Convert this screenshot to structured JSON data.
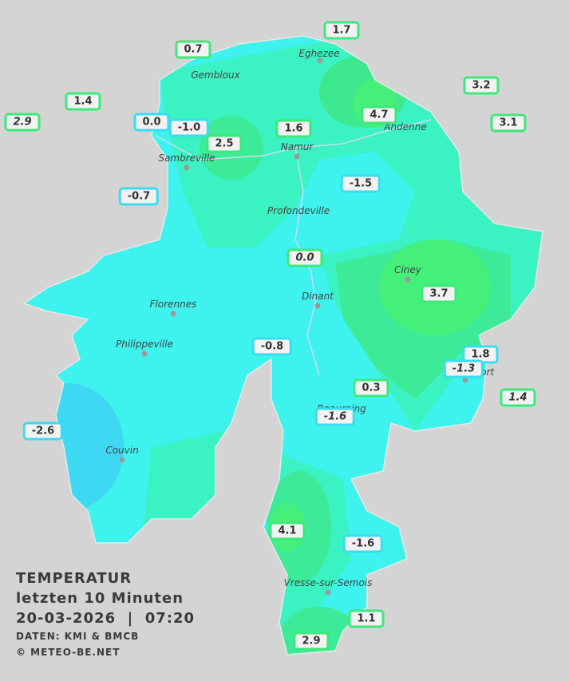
{
  "legend": {
    "title": "TEMPERATUR",
    "period": "letzten 10 Minuten",
    "datetime": "20-03-2026  |  07:20",
    "source": "DATEN: KMI & BMCB",
    "copyright": "© METEO-BE.NET"
  },
  "towns": [
    "Eghezee",
    "Gembloux",
    "Andenne",
    "Sambreville",
    "Namur",
    "Profondeville",
    "Ciney",
    "Dinant",
    "Florennes",
    "Philippeville",
    "Beauraing",
    "Rochefort",
    "Couvin",
    "Vresse-sur-Semois"
  ],
  "stations": [
    {
      "label": "0.7"
    },
    {
      "label": "1.7"
    },
    {
      "label": "1.4"
    },
    {
      "label": "2.9",
      "italic": true
    },
    {
      "label": "0.0"
    },
    {
      "label": "-1.0"
    },
    {
      "label": "2.5"
    },
    {
      "label": "1.6"
    },
    {
      "label": "4.7"
    },
    {
      "label": "3.2"
    },
    {
      "label": "3.1"
    },
    {
      "label": "-0.7"
    },
    {
      "label": "-1.5"
    },
    {
      "label": "0.0",
      "italic": true
    },
    {
      "label": "3.7"
    },
    {
      "label": "-0.8"
    },
    {
      "label": "1.8"
    },
    {
      "label": "-1.3",
      "italic": true
    },
    {
      "label": "1.4",
      "italic": true
    },
    {
      "label": "0.3"
    },
    {
      "label": "-1.6",
      "italic": true
    },
    {
      "label": "-2.6"
    },
    {
      "label": "4.1"
    },
    {
      "label": "-1.6"
    },
    {
      "label": "1.1"
    },
    {
      "label": "2.9"
    }
  ]
}
